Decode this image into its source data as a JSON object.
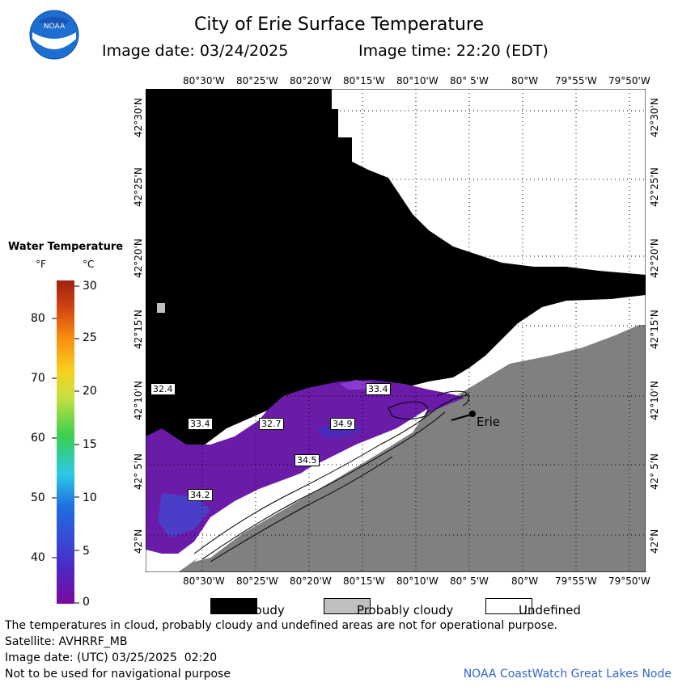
{
  "header": {
    "title": "City of Erie Surface Temperature",
    "image_date": "Image date: 03/24/2025",
    "image_time": "Image time: 22:20 (EDT)"
  },
  "logo": {
    "text": "NOAA",
    "icon": "noaa-logo"
  },
  "map": {
    "lon_labels": [
      "80°30'W",
      "80°25'W",
      "80°20'W",
      "80°15'W",
      "80°10'W",
      "80° 5'W",
      "80°W",
      "79°55'W",
      "79°50'W"
    ],
    "lat_labels": [
      "42°30'N",
      "42°25'N",
      "42°20'N",
      "42°15'N",
      "42°10'N",
      "42° 5'N",
      "42°N"
    ],
    "city": "Erie",
    "temp_labels": [
      "32.4",
      "33.4",
      "33.4",
      "32.7",
      "34.9",
      "34.5",
      "34.2"
    ],
    "colors": {
      "cloudy": "#000000",
      "probably_cloudy": "#c0c0c0",
      "undefined": "#ffffff",
      "land": "#808080",
      "water_cold": "#6a1ca8"
    }
  },
  "legend": {
    "title": "Water Temperature",
    "unit_f": "°F",
    "unit_c": "°C",
    "f_ticks": [
      "80",
      "70",
      "60",
      "50",
      "40"
    ],
    "c_ticks": [
      "30",
      "25",
      "20",
      "15",
      "10",
      "5",
      "0"
    ]
  },
  "key": {
    "cloudy": "Cloudy",
    "probably_cloudy": "Probably cloudy",
    "undefined": "Undefined"
  },
  "notes": {
    "line1": "The temperatures in cloud, probably cloudy and undefined areas are not for operational purpose.",
    "line2": "Satellite: AVHRRF_MB",
    "line3": "Image date: (UTC) 03/25/2025  02:20",
    "line4": "Not to be used for navigational purpose",
    "credit": "NOAA CoastWatch Great Lakes Node"
  }
}
